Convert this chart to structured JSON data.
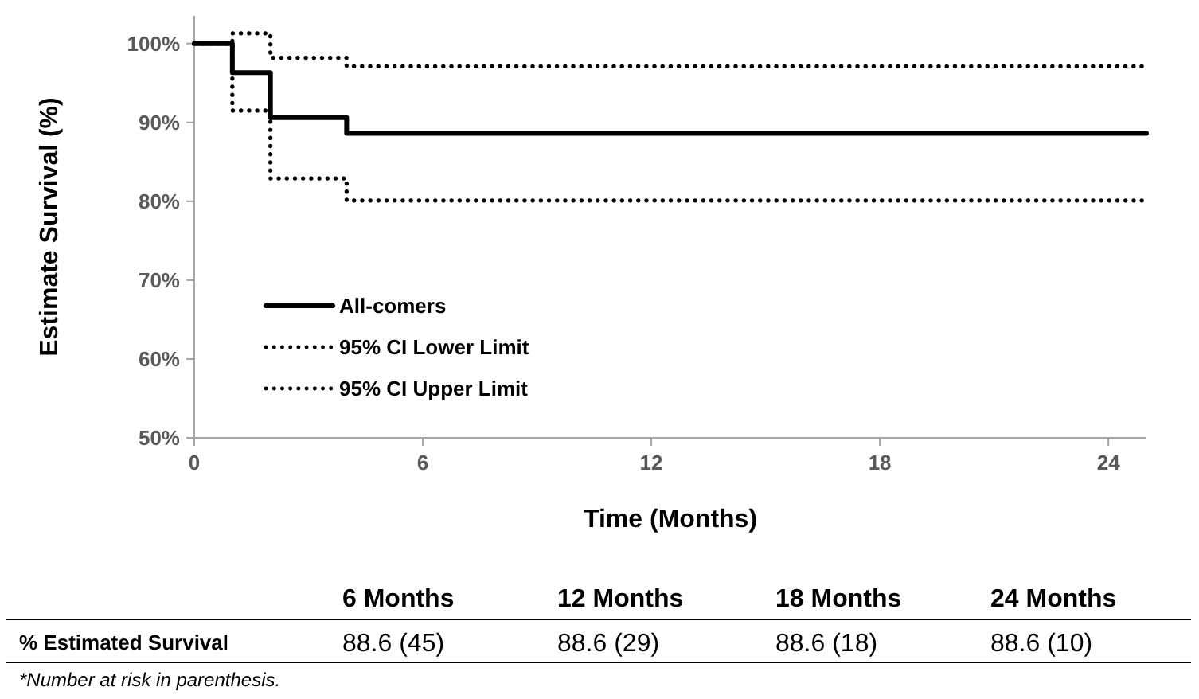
{
  "chart_data": {
    "type": "step",
    "xlabel": "Time (Months)",
    "ylabel": "Estimate Survival (%)",
    "series": [
      {
        "name": "All-comers",
        "color": "#000000",
        "line_style": "solid",
        "x": [
          0,
          1,
          2,
          4,
          25
        ],
        "values": [
          100,
          96.3,
          90.6,
          88.6,
          88.6
        ]
      },
      {
        "name": "95% CI Lower Limit",
        "color": "#000000",
        "line_style": "dotted",
        "x": [
          0,
          1,
          2,
          4,
          25
        ],
        "values": [
          100,
          91.5,
          82.9,
          80.1,
          80.1
        ]
      },
      {
        "name": "95% CI Upper Limit",
        "color": "#000000",
        "line_style": "dotted",
        "x": [
          0,
          1,
          2,
          4,
          25
        ],
        "values": [
          100,
          101.3,
          98.2,
          97.1,
          97.1
        ]
      }
    ],
    "xlim": [
      0,
      25
    ],
    "xticks": [
      0,
      6,
      12,
      18,
      24
    ],
    "ylim": [
      50,
      103.5
    ],
    "yticks": [
      {
        "value": 50,
        "label": "50%"
      },
      {
        "value": 60,
        "label": "60%"
      },
      {
        "value": 70,
        "label": "70%"
      },
      {
        "value": 80,
        "label": "80%"
      },
      {
        "value": 90,
        "label": "90%"
      },
      {
        "value": 100,
        "label": "100%"
      }
    ],
    "grid": false,
    "legend": "bottom left",
    "marker": "none",
    "annotations": [
      "6 Months",
      "12 Months",
      "18 Months",
      "24 Months",
      "% Estimated Survival",
      "88.6 (45)",
      "88.6 (29)",
      "88.6 (18)",
      "88.6 (10)",
      "*Number at risk in parenthesis."
    ]
  }
}
